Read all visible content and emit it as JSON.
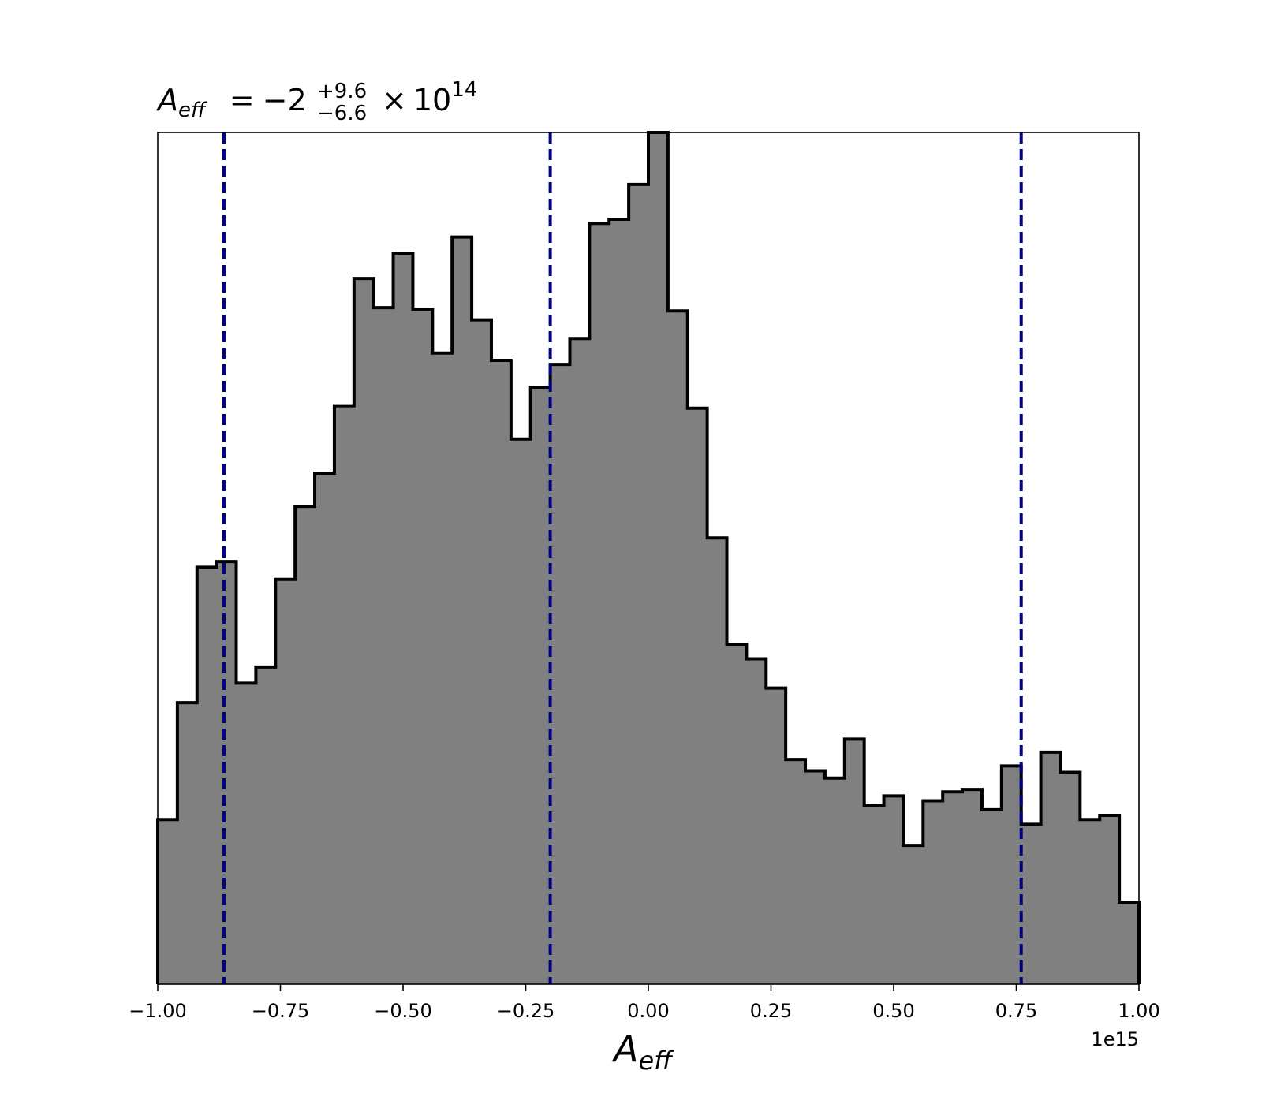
{
  "chart_data": {
    "type": "histogram",
    "title": {
      "symbol": "A",
      "symbol_subscript": "eff",
      "equals": "=",
      "value": "−2",
      "upper_error": "+9.6",
      "lower_error": "−6.6",
      "times": "×",
      "base": "10",
      "exponent": "14"
    },
    "xlabel": {
      "symbol": "A",
      "subscript": "eff"
    },
    "x_offset_label": "1e15",
    "x_scale": 1000000000000000.0,
    "xlim": [
      -1.0,
      1.0
    ],
    "ylim": [
      0,
      105
    ],
    "y_axis_visible": false,
    "x_ticks": [
      -1.0,
      -0.75,
      -0.5,
      -0.25,
      0.0,
      0.25,
      0.5,
      0.75,
      1.0
    ],
    "x_tick_labels": [
      "−1.00",
      "−0.75",
      "−0.50",
      "−0.25",
      "0.00",
      "0.25",
      "0.50",
      "0.75",
      "1.00"
    ],
    "bin_edges": [
      -1.0,
      -0.96,
      -0.92,
      -0.88,
      -0.84,
      -0.8,
      -0.76,
      -0.72,
      -0.68,
      -0.64,
      -0.6,
      -0.56,
      -0.52,
      -0.48,
      -0.44,
      -0.4,
      -0.36,
      -0.32,
      -0.28,
      -0.24,
      -0.2,
      -0.16,
      -0.12,
      -0.08,
      -0.04,
      0.0,
      0.04,
      0.08,
      0.12,
      0.16,
      0.2,
      0.24,
      0.28,
      0.32,
      0.36,
      0.4,
      0.44,
      0.48,
      0.52,
      0.56,
      0.6,
      0.64,
      0.68,
      0.72,
      0.76,
      0.8,
      0.84,
      0.88,
      0.92,
      0.96,
      1.0
    ],
    "counts": [
      20.3,
      34.7,
      51.4,
      52.1,
      37.1,
      39.1,
      49.9,
      58.9,
      63.0,
      71.3,
      87.0,
      83.4,
      90.1,
      83.2,
      77.8,
      92.1,
      81.9,
      76.9,
      67.2,
      73.6,
      76.4,
      79.6,
      93.8,
      94.3,
      98.6,
      105.0,
      83.0,
      71.0,
      55.0,
      41.9,
      40.1,
      36.5,
      27.7,
      26.3,
      25.4,
      30.2,
      22.0,
      23.2,
      17.1,
      22.6,
      23.7,
      24.0,
      21.5,
      26.9,
      19.7,
      28.6,
      26.1,
      20.3,
      20.8,
      10.1
    ],
    "fill_color": "#808080",
    "edge_color": "#000000",
    "reference_lines": {
      "values": [
        -0.865,
        -0.2,
        0.76
      ],
      "style": "dashed",
      "color": "#000080"
    },
    "grid": false,
    "legend": false
  }
}
